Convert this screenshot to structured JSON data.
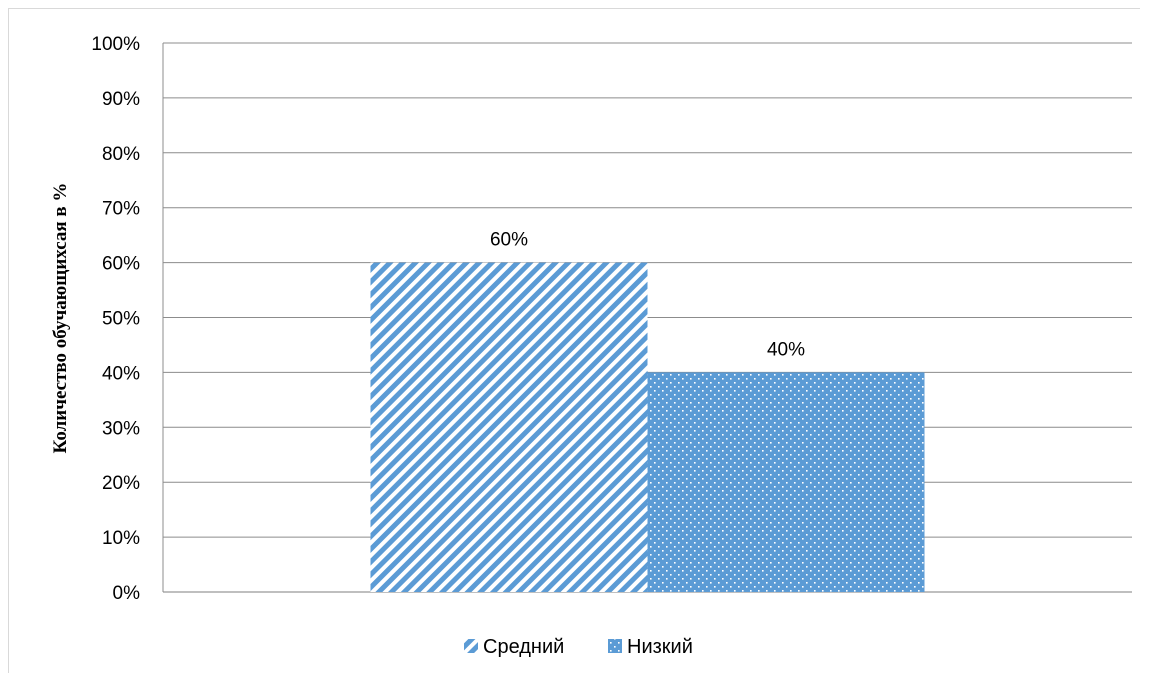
{
  "chart_data": {
    "type": "bar",
    "title": "",
    "xlabel": "",
    "ylabel": "Количество обучающихсая в %",
    "ylim": [
      0,
      100
    ],
    "yticks": [
      "0%",
      "10%",
      "20%",
      "30%",
      "40%",
      "50%",
      "60%",
      "70%",
      "80%",
      "90%",
      "100%"
    ],
    "grid": true,
    "legend_position": "bottom",
    "series": [
      {
        "name": "Средний",
        "value": 60,
        "label": "60%",
        "color": "#5b9bd5",
        "pattern": "diagonal-stripes"
      },
      {
        "name": "Низкий",
        "value": 40,
        "label": "40%",
        "color": "#5b9bd5",
        "pattern": "dots"
      }
    ]
  }
}
